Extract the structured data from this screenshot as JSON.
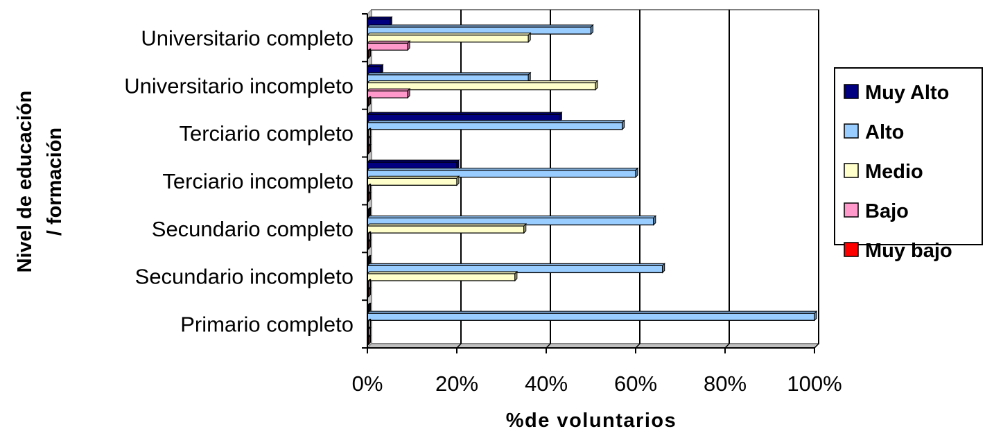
{
  "chart_data": {
    "type": "bar",
    "orientation": "horizontal",
    "stacked": false,
    "categories": [
      "Universitario completo",
      "Universitario incompleto",
      "Terciario completo",
      "Terciario incompleto",
      "Secundario completo",
      "Secundario incompleto",
      "Primario completo"
    ],
    "series": [
      {
        "name": "Muy Alto",
        "color": "#000080",
        "values": [
          5,
          3,
          43,
          20,
          0,
          0,
          0
        ]
      },
      {
        "name": "Alto",
        "color": "#99CCFF",
        "values": [
          50,
          36,
          57,
          60,
          64,
          66,
          100
        ]
      },
      {
        "name": "Medio",
        "color": "#FFFFCC",
        "values": [
          36,
          51,
          0,
          20,
          35,
          33,
          0
        ]
      },
      {
        "name": "Bajo",
        "color": "#FF99CC",
        "values": [
          9,
          9,
          0,
          0,
          0,
          0,
          0
        ]
      },
      {
        "name": "Muy bajo",
        "color": "#FF0000",
        "values": [
          0,
          0,
          0,
          0,
          0,
          0,
          0
        ]
      }
    ],
    "xlim": [
      0,
      100
    ],
    "x_ticks": [
      "0%",
      "20%",
      "40%",
      "60%",
      "80%",
      "100%"
    ],
    "xlabel": "%de voluntarios",
    "ylabel": [
      "Nivel de educación",
      "/ formación"
    ],
    "grid": "vertical",
    "legend_position": "right"
  }
}
